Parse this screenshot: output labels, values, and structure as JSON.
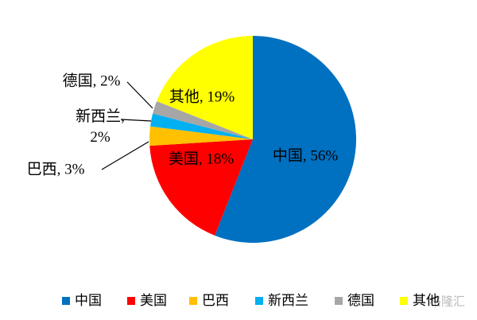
{
  "chart_data": {
    "type": "pie",
    "categories": [
      "中国",
      "美国",
      "巴西",
      "新西兰",
      "德国",
      "其他"
    ],
    "values": [
      56,
      18,
      3,
      2,
      2,
      19
    ],
    "value_labels": [
      "中国, 56%",
      "美国, 18%",
      "巴西, 3%",
      "新西兰, 2%",
      "德国, 2%",
      "其他, 19%"
    ],
    "colors": [
      "#0070c0",
      "#ff0000",
      "#ffc000",
      "#00b0f0",
      "#a6a6a6",
      "#ffff00"
    ],
    "legend": "bottom"
  },
  "watermark": "格隆汇"
}
